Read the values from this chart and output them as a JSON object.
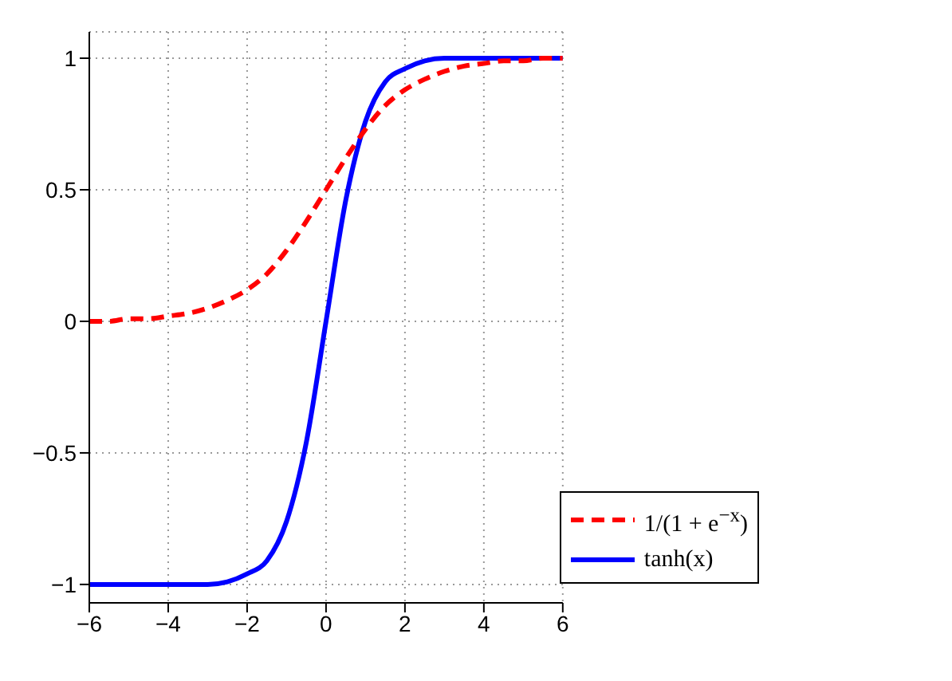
{
  "chart_data": {
    "type": "line",
    "x": [
      -6,
      -5.5,
      -5,
      -4.5,
      -4,
      -3.5,
      -3,
      -2.5,
      -2,
      -1.5,
      -1,
      -0.5,
      0,
      0.5,
      1,
      1.5,
      2,
      2.5,
      3,
      3.5,
      4,
      4.5,
      5,
      5.5,
      6
    ],
    "series": [
      {
        "name": "1/(1 + e$^{−x}$)",
        "color": "#ff0000",
        "line_style": "dashed",
        "values": [
          0.0,
          0.0,
          0.01,
          0.01,
          0.02,
          0.03,
          0.05,
          0.08,
          0.12,
          0.18,
          0.27,
          0.38,
          0.5,
          0.62,
          0.73,
          0.82,
          0.88,
          0.92,
          0.95,
          0.97,
          0.98,
          0.99,
          0.99,
          1.0,
          1.0
        ]
      },
      {
        "name": "tanh(x)",
        "color": "#0000ff",
        "line_style": "solid",
        "values": [
          -1.0,
          -1.0,
          -1.0,
          -1.0,
          -1.0,
          -1.0,
          -1.0,
          -0.99,
          -0.96,
          -0.91,
          -0.76,
          -0.46,
          0,
          0.46,
          0.76,
          0.91,
          0.96,
          0.99,
          1.0,
          1.0,
          1.0,
          1.0,
          1.0,
          1.0,
          1.0
        ]
      }
    ],
    "xlim": [
      -6,
      6
    ],
    "xticks": [
      -6,
      -4,
      -2,
      0,
      2,
      4,
      6
    ],
    "ylim": [
      -1.07,
      1.1
    ],
    "yticks": [
      -1,
      -0.5,
      0,
      0.5,
      1
    ],
    "grid": true,
    "legend": "bottom right",
    "marker": "none"
  }
}
